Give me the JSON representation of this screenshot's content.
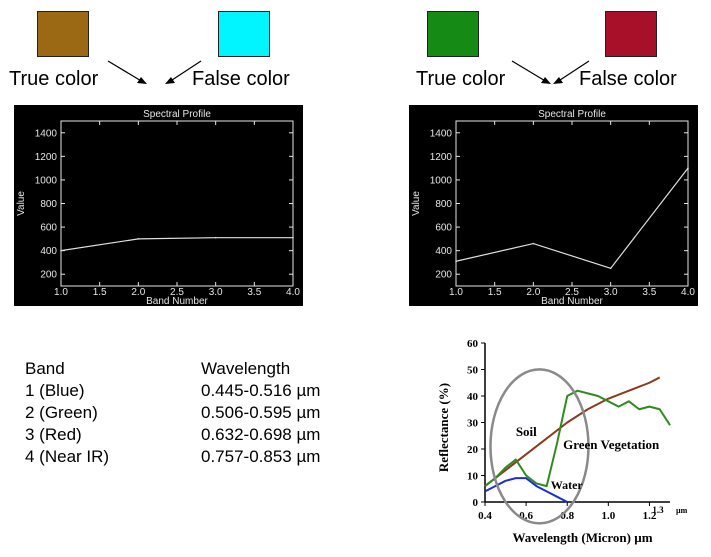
{
  "left_group": {
    "true_color": "#9b6914",
    "false_color": "#00f5ff",
    "true_label": "True color",
    "false_label": "False color"
  },
  "right_group": {
    "true_color": "#158a15",
    "false_color": "#a8102a",
    "true_label": "True color",
    "false_label": "False color"
  },
  "band_table": {
    "headers": [
      "Band",
      "Wavelength"
    ],
    "rows": [
      [
        "1 (Blue)",
        "0.445-0.516 µm"
      ],
      [
        "2 (Green)",
        "0.506-0.595 µm"
      ],
      [
        "3 (Red)",
        "0.632-0.698 µm"
      ],
      [
        "4 (Near IR)",
        "0.757-0.853 µm"
      ]
    ]
  },
  "chart_data": [
    {
      "type": "line",
      "title": "Spectral Profile",
      "xlabel": "Band Number",
      "ylabel": "Value",
      "xlim": [
        1.0,
        4.0
      ],
      "ylim": [
        100,
        1500
      ],
      "xticks": [
        "1.0",
        "1.5",
        "2.0",
        "2.5",
        "3.0",
        "3.5",
        "4.0"
      ],
      "yticks": [
        "200",
        "400",
        "600",
        "800",
        "1000",
        "1200",
        "1400"
      ],
      "background": "#000000",
      "line_color": "#e0e0e0",
      "series": [
        {
          "x": [
            1,
            2,
            3,
            4
          ],
          "values": [
            400,
            500,
            510,
            510
          ]
        }
      ]
    },
    {
      "type": "line",
      "title": "Spectral Profile",
      "xlabel": "Band Number",
      "ylabel": "Value",
      "xlim": [
        1.0,
        4.0
      ],
      "ylim": [
        100,
        1500
      ],
      "xticks": [
        "1.0",
        "1.5",
        "2.0",
        "2.5",
        "3.0",
        "3.5",
        "4.0"
      ],
      "yticks": [
        "200",
        "400",
        "600",
        "800",
        "1000",
        "1200",
        "1400"
      ],
      "background": "#000000",
      "line_color": "#e0e0e0",
      "series": [
        {
          "x": [
            1,
            2,
            3,
            4
          ],
          "values": [
            310,
            460,
            250,
            1100
          ]
        }
      ]
    },
    {
      "type": "line",
      "xlabel": "Wavelength (Micron) µm",
      "ylabel": "Reflectance (%)",
      "xlim": [
        0.4,
        1.3
      ],
      "ylim": [
        0,
        60
      ],
      "xticks": [
        "0.4",
        "0.6",
        "0.8",
        "1.0",
        "1.2",
        "1.3"
      ],
      "yticks": [
        "0",
        "10",
        "20",
        "30",
        "40",
        "50",
        "60"
      ],
      "x_unit_label": "µm",
      "series": [
        {
          "name": "Soil",
          "color": "#8b3a1e",
          "x": [
            0.4,
            0.5,
            0.6,
            0.7,
            0.8,
            0.9,
            1.0,
            1.1,
            1.2,
            1.25
          ],
          "values": [
            6,
            12,
            18,
            24,
            30,
            35,
            39,
            42,
            45,
            47
          ]
        },
        {
          "name": "Green Vegetation",
          "color": "#2e8b1e",
          "x": [
            0.4,
            0.45,
            0.5,
            0.55,
            0.6,
            0.65,
            0.7,
            0.75,
            0.8,
            0.85,
            0.9,
            0.95,
            1.0,
            1.05,
            1.1,
            1.15,
            1.2,
            1.25,
            1.3
          ],
          "values": [
            6,
            9,
            13,
            16,
            10,
            7,
            6,
            22,
            40,
            42,
            41,
            40,
            38,
            36,
            38,
            35,
            36,
            35,
            29
          ]
        },
        {
          "name": "Water",
          "color": "#1d2fd4",
          "x": [
            0.4,
            0.45,
            0.5,
            0.55,
            0.6,
            0.65,
            0.7,
            0.75,
            0.8
          ],
          "values": [
            4,
            6,
            8,
            9,
            9,
            6,
            4,
            2,
            0
          ]
        }
      ],
      "annotations": [
        "Soil",
        "Green Vegetation",
        "Water"
      ]
    }
  ]
}
